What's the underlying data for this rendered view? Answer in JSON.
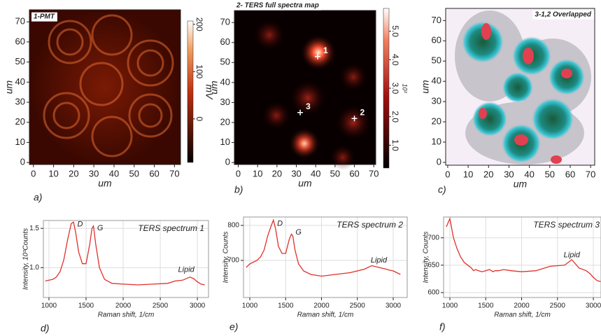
{
  "chart_data": [
    {
      "type": "heatmap",
      "panel": "a)",
      "title": "1-PMT",
      "xlabel": "um",
      "ylabel": "um",
      "xlim": [
        -2,
        73
      ],
      "ylim": [
        -1,
        76
      ],
      "xticks": [
        0,
        10,
        20,
        30,
        40,
        50,
        60,
        70
      ],
      "yticks": [
        0,
        10,
        20,
        30,
        40,
        50,
        60,
        70
      ],
      "colorbar": {
        "label": "mV",
        "lim": [
          -92,
          207
        ],
        "ticks": [
          0,
          100,
          200
        ]
      }
    },
    {
      "type": "heatmap",
      "panel": "b)",
      "title": "2- TERS full spectra map",
      "xlabel": "um",
      "ylabel": "um",
      "xlim": [
        -2,
        71
      ],
      "ylim": [
        -1,
        76
      ],
      "xticks": [
        0,
        10,
        20,
        30,
        40,
        50,
        60,
        70
      ],
      "yticks": [
        0,
        10,
        20,
        30,
        40,
        50,
        60,
        70
      ],
      "points": [
        {
          "label": "1",
          "x": 41,
          "y": 53
        },
        {
          "label": "2",
          "x": 60,
          "y": 22
        },
        {
          "label": "3",
          "x": 32,
          "y": 25
        }
      ],
      "colorbar": {
        "label": "10³",
        "lim": [
          0.2,
          5.8
        ],
        "ticks": [
          {
            "value": 1,
            "label": "1.0"
          },
          {
            "value": 2,
            "label": "2.0"
          },
          {
            "value": 3,
            "label": "3.0"
          },
          {
            "value": 4,
            "label": "4.0"
          },
          {
            "value": 5,
            "label": "5.0"
          }
        ]
      }
    },
    {
      "type": "heatmap",
      "panel": "c)",
      "title": "3-1,2 Overlapped",
      "xlabel": "um",
      "ylabel": "um",
      "xlim": [
        -1,
        72
      ],
      "ylim": [
        -1.4,
        76
      ],
      "xticks": [
        0,
        10,
        20,
        30,
        40,
        50,
        60,
        70
      ],
      "yticks": [
        0,
        10,
        20,
        30,
        40,
        50,
        60,
        70
      ]
    },
    {
      "type": "line",
      "panel": "d)",
      "title": "TERS spectrum 1",
      "xlabel": "Raman shift, 1/cm",
      "ylabel": "Intensity, 10³Counts",
      "color": "#e0302a",
      "grid": true,
      "xlim": [
        925,
        3150
      ],
      "ylim": [
        0.62,
        1.6
      ],
      "xticks": [
        1000,
        1500,
        2000,
        2500,
        3000
      ],
      "yticks": [
        {
          "value": 1,
          "label": "1.0"
        },
        1.5
      ],
      "x": [
        950,
        1000,
        1050,
        1100,
        1150,
        1200,
        1250,
        1300,
        1330,
        1360,
        1400,
        1450,
        1500,
        1550,
        1580,
        1600,
        1630,
        1680,
        1750,
        1850,
        2000,
        2200,
        2400,
        2600,
        2700,
        2800,
        2900,
        2950,
        3000,
        3050,
        3100
      ],
      "values": [
        0.83,
        0.84,
        0.85,
        0.88,
        0.95,
        1.1,
        1.35,
        1.56,
        1.58,
        1.45,
        1.2,
        1.05,
        1.05,
        1.3,
        1.5,
        1.53,
        1.3,
        1.0,
        0.85,
        0.8,
        0.79,
        0.78,
        0.79,
        0.8,
        0.83,
        0.84,
        0.88,
        0.86,
        0.82,
        0.79,
        0.78
      ],
      "annotations": [
        {
          "text": "D",
          "x": 1420,
          "y": 1.55
        },
        {
          "text": "G",
          "x": 1690,
          "y": 1.5
        },
        {
          "text": "Lipid",
          "x": 2850,
          "y": 0.97
        }
      ]
    },
    {
      "type": "line",
      "panel": "e)",
      "title": "TERS spectrum 2",
      "xlabel": "Raman shift, 1/cm",
      "ylabel": "Intensity, Counts",
      "color": "#e0302a",
      "grid": true,
      "xlim": [
        912,
        3195
      ],
      "ylim": [
        594,
        824
      ],
      "xticks": [
        1000,
        1500,
        2000,
        2500,
        3000
      ],
      "yticks": [
        700,
        800
      ],
      "x": [
        950,
        1000,
        1050,
        1100,
        1150,
        1200,
        1250,
        1300,
        1330,
        1360,
        1400,
        1450,
        1500,
        1550,
        1580,
        1600,
        1630,
        1680,
        1750,
        1850,
        2000,
        2200,
        2400,
        2600,
        2700,
        2800,
        2900,
        2950,
        3000,
        3050,
        3100
      ],
      "values": [
        680,
        690,
        695,
        700,
        710,
        730,
        770,
        800,
        815,
        790,
        740,
        720,
        720,
        760,
        775,
        770,
        730,
        690,
        670,
        660,
        655,
        660,
        665,
        675,
        685,
        680,
        675,
        672,
        670,
        665,
        660
      ],
      "annotations": [
        {
          "text": "D",
          "x": 1420,
          "y": 805
        },
        {
          "text": "G",
          "x": 1680,
          "y": 780
        },
        {
          "text": "Lipid",
          "x": 2800,
          "y": 700
        }
      ]
    },
    {
      "type": "line",
      "panel": "f)",
      "title": "TERS spectrum 3",
      "xlabel": "Raman shift, 1/cm",
      "ylabel": "Intensity, Counts",
      "color": "#e0302a",
      "grid": true,
      "xlim": [
        912,
        3107
      ],
      "ylim": [
        591,
        738
      ],
      "xticks": [
        1000,
        1500,
        2000,
        2500,
        3000
      ],
      "yticks": [
        600,
        650,
        700
      ],
      "x": [
        950,
        1000,
        1050,
        1100,
        1150,
        1200,
        1250,
        1300,
        1330,
        1360,
        1400,
        1450,
        1500,
        1550,
        1580,
        1600,
        1630,
        1680,
        1750,
        1850,
        2000,
        2200,
        2400,
        2600,
        2700,
        2800,
        2900,
        2950,
        3000,
        3050,
        3100
      ],
      "values": [
        720,
        735,
        700,
        680,
        665,
        655,
        650,
        645,
        640,
        642,
        640,
        638,
        640,
        642,
        640,
        638,
        640,
        640,
        642,
        640,
        638,
        640,
        648,
        650,
        660,
        645,
        640,
        635,
        628,
        622,
        620
      ],
      "annotations": [
        {
          "text": "Lipid",
          "x": 2700,
          "y": 668
        }
      ]
    }
  ]
}
